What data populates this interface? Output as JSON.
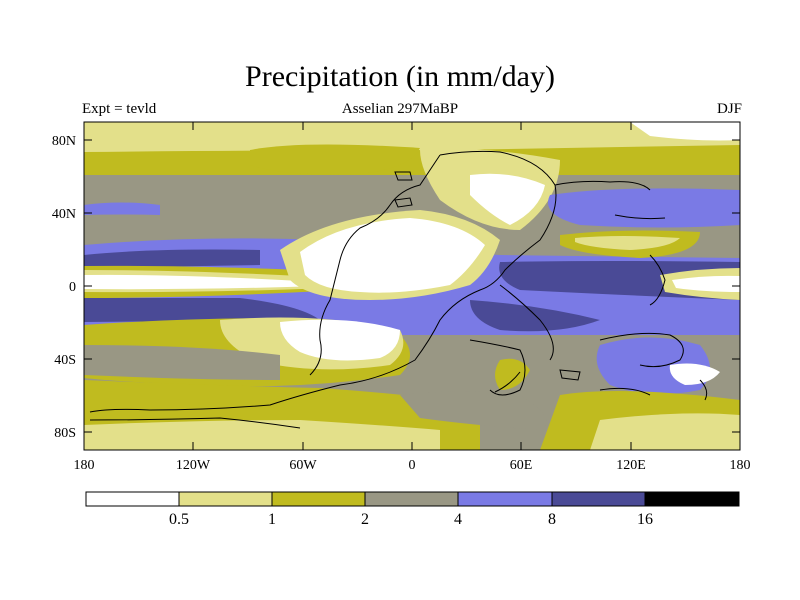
{
  "title": "Precipitation (in mm/day)",
  "subtitle_left": "Expt = tevld",
  "subtitle_center": "Asselian 297MaBP",
  "subtitle_right": "DJF",
  "lat_ticks": [
    "80N",
    "40N",
    "0",
    "40S",
    "80S"
  ],
  "lon_ticks": [
    "180",
    "120W",
    "60W",
    "0",
    "60E",
    "120E",
    "180"
  ],
  "colorbar": {
    "colors": [
      "#ffffff",
      "#e3e08a",
      "#c0bb1f",
      "#999784",
      "#7a7ae5",
      "#4a4a96",
      "#000000"
    ],
    "labels": [
      "0.5",
      "1",
      "2",
      "4",
      "8",
      "16"
    ]
  }
}
